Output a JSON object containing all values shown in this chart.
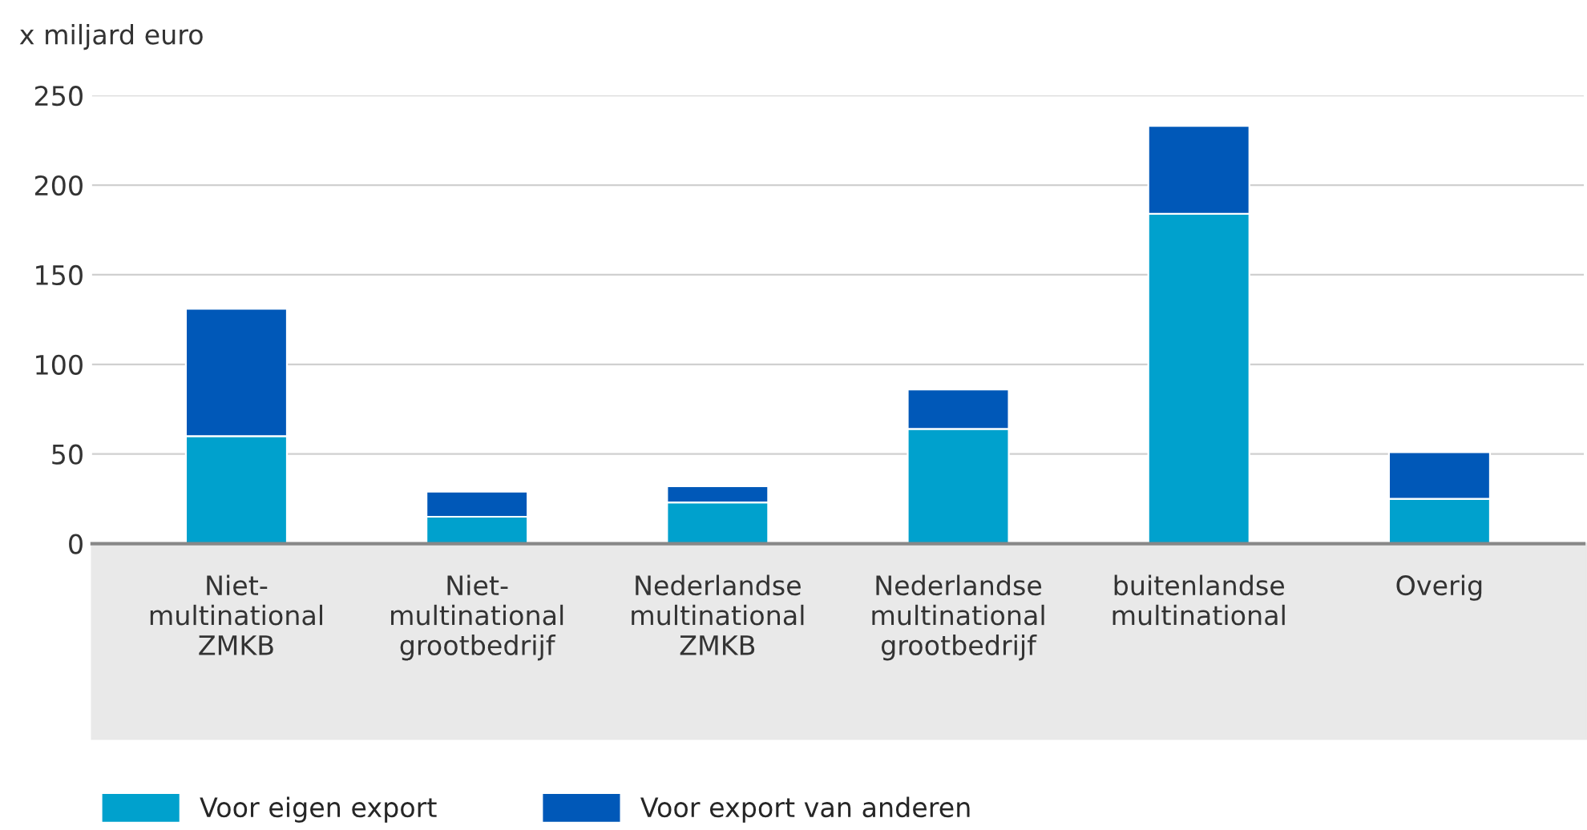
{
  "chart_data": {
    "type": "bar",
    "stacked": true,
    "ylabel": "x miljard euro",
    "categories": [
      "Niet-\nmultinational\nZMKB",
      "Niet-\nmultinational\ngrootbedrijf",
      "Nederlandse\nmultinational\nZMKB",
      "Nederlandse\nmultinational\ngrootbedrijf",
      "buitenlandse\nmultinational",
      "Overig"
    ],
    "series": [
      {
        "name": "Voor eigen export",
        "color": "#00a1cd",
        "values": [
          60,
          15,
          23,
          64,
          184,
          25
        ]
      },
      {
        "name": "Voor export van anderen",
        "color": "#0058b8",
        "values": [
          71,
          14,
          9,
          22,
          49,
          26
        ]
      }
    ],
    "ylim": [
      0,
      250
    ],
    "yticks": [
      0,
      50,
      100,
      150,
      200,
      250
    ],
    "grid": "y",
    "legend": "bottom left"
  }
}
